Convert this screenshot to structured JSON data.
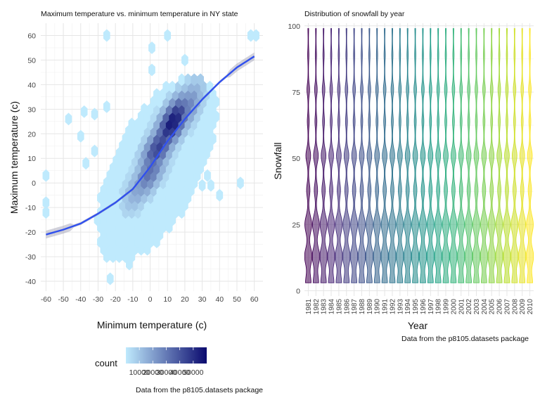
{
  "chart_data": [
    {
      "type": "hexbin",
      "title": "Maximum temperature vs. minimum temperature in NY state",
      "xlabel": "Minimum temperature (c)",
      "ylabel": "Maximum temperature (c)",
      "caption": "Data from the p8105.datasets package",
      "xlim": [
        -63,
        65
      ],
      "ylim": [
        -44,
        65
      ],
      "xticks": [
        -60,
        -50,
        -40,
        -30,
        -20,
        -10,
        0,
        10,
        20,
        30,
        40,
        50,
        60
      ],
      "yticks": [
        -40,
        -30,
        -20,
        -10,
        0,
        10,
        20,
        30,
        40,
        50,
        60
      ],
      "xtick_labels": [
        "-60",
        "-50",
        "-40",
        "-30",
        "-20",
        "-10",
        "0",
        "10",
        "20",
        "30",
        "40",
        "50",
        "60"
      ],
      "ytick_labels": [
        "-40",
        "-30",
        "-20",
        "-10",
        "0",
        "10",
        "20",
        "30",
        "40",
        "50",
        "60"
      ],
      "grid": true,
      "colors": {
        "low": "#bfeafd",
        "high": "#0a0a6e",
        "smooth": "#3050ee"
      },
      "legend": {
        "title": "count",
        "position": "bottom",
        "breaks": [
          10000,
          20000,
          30000,
          40000,
          50000
        ],
        "labels": [
          "10000",
          "20000",
          "30000",
          "40000",
          "50000"
        ],
        "range": [
          0,
          60000
        ]
      },
      "hex_cores": [
        {
          "x": 5,
          "y": 15,
          "value": 0.75
        },
        {
          "x": 13,
          "y": 25,
          "value": 0.95
        },
        {
          "x": 0,
          "y": 5,
          "value": 0.55
        },
        {
          "x": -5,
          "y": 0,
          "value": 0.35
        },
        {
          "x": 20,
          "y": 30,
          "value": 0.5
        }
      ],
      "outliers": [
        {
          "x": -25,
          "y": 60
        },
        {
          "x": 10,
          "y": 60
        },
        {
          "x": 58,
          "y": 60
        },
        {
          "x": 61,
          "y": 60
        },
        {
          "x": 1,
          "y": 55
        },
        {
          "x": 20,
          "y": 50
        },
        {
          "x": 1,
          "y": 46
        },
        {
          "x": -47,
          "y": 26
        },
        {
          "x": -38,
          "y": 29
        },
        {
          "x": -32,
          "y": 28
        },
        {
          "x": -25,
          "y": 31
        },
        {
          "x": -40,
          "y": 19
        },
        {
          "x": -32,
          "y": 13
        },
        {
          "x": -60,
          "y": 3
        },
        {
          "x": -60,
          "y": -8
        },
        {
          "x": -60,
          "y": -12
        },
        {
          "x": 52,
          "y": 0
        },
        {
          "x": 40,
          "y": -5
        },
        {
          "x": 35,
          "y": -1
        },
        {
          "x": 30,
          "y": -1
        },
        {
          "x": -12,
          "y": -28
        },
        {
          "x": -12,
          "y": -33
        },
        {
          "x": -25,
          "y": -30
        },
        {
          "x": -23,
          "y": -39
        },
        {
          "x": -37,
          "y": 8
        },
        {
          "x": 33,
          "y": 3
        }
      ],
      "smooth": {
        "x": [
          -60,
          -50,
          -40,
          -30,
          -20,
          -10,
          0,
          10,
          20,
          30,
          40,
          50,
          60
        ],
        "y": [
          -21,
          -19,
          -16.5,
          -12.5,
          -8,
          -2.5,
          6.5,
          17,
          26,
          34,
          41,
          47,
          51.5
        ]
      }
    },
    {
      "type": "violin",
      "title": "Distribution of snowfall by year",
      "xlabel": "Year",
      "ylabel": "Snowfall",
      "caption": "Data from the p8105.datasets package",
      "ylim": [
        -2,
        101
      ],
      "yticks": [
        0,
        25,
        50,
        75,
        100
      ],
      "ytick_labels": [
        "0",
        "25",
        "50",
        "75",
        "100"
      ],
      "grid": true,
      "categories": [
        "1981",
        "1982",
        "1983",
        "1984",
        "1985",
        "1986",
        "1987",
        "1988",
        "1989",
        "1990",
        "1991",
        "1992",
        "1993",
        "1994",
        "1995",
        "1996",
        "1997",
        "1998",
        "1999",
        "2000",
        "2001",
        "2002",
        "2003",
        "2004",
        "2005",
        "2006",
        "2007",
        "2008",
        "2009",
        "2010"
      ],
      "range_per_year": [
        3,
        99
      ],
      "fill_palette": "viridis",
      "fill_alpha": 0.55
    }
  ]
}
